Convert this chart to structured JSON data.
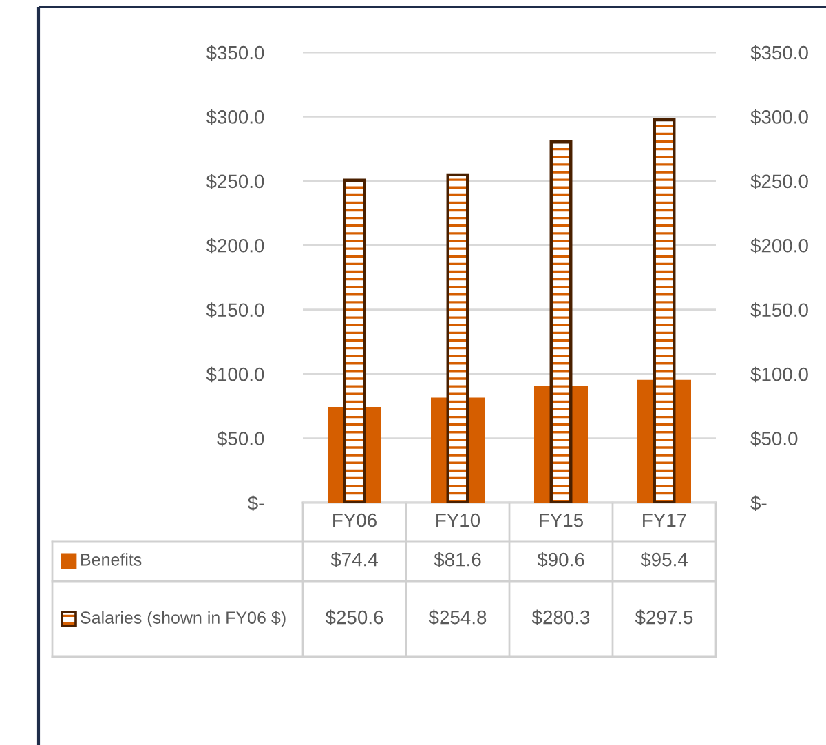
{
  "chart_data": {
    "type": "bar",
    "categories": [
      "FY06",
      "FY10",
      "FY15",
      "FY17"
    ],
    "series": [
      {
        "name": "Benefits",
        "color": "#d55e00",
        "values": [
          74.4,
          81.6,
          90.6,
          95.4
        ],
        "value_labels": [
          "$74.4",
          "$81.6",
          "$90.6",
          "$95.4"
        ]
      },
      {
        "name": "Salaries (shown in FY06 $)",
        "color": "#d55e00",
        "values": [
          250.6,
          254.8,
          280.3,
          297.5
        ],
        "value_labels": [
          "$250.6",
          "$254.8",
          "$280.3",
          "$297.5"
        ]
      }
    ],
    "ylim": [
      0,
      350
    ],
    "yticks": [
      {
        "value": 0,
        "label": "$-"
      },
      {
        "value": 50,
        "label": "$50.0"
      },
      {
        "value": 100,
        "label": "$100.0"
      },
      {
        "value": 150,
        "label": "$150.0"
      },
      {
        "value": 200,
        "label": "$200.0"
      },
      {
        "value": 250,
        "label": "$250.0"
      },
      {
        "value": 300,
        "label": "$300.0"
      },
      {
        "value": 350,
        "label": "$350.0"
      }
    ],
    "y2lim": [
      0,
      350
    ],
    "y2ticks": [
      {
        "value": 0,
        "label": "$-"
      },
      {
        "value": 50,
        "label": "$50.0"
      },
      {
        "value": 100,
        "label": "$100.0"
      },
      {
        "value": 150,
        "label": "$150.0"
      },
      {
        "value": 200,
        "label": "$200.0"
      },
      {
        "value": 250,
        "label": "$250.0"
      },
      {
        "value": 300,
        "label": "$300.0"
      },
      {
        "value": 350,
        "label": "$350.0"
      }
    ],
    "grid": "y",
    "legend": "bottom"
  }
}
